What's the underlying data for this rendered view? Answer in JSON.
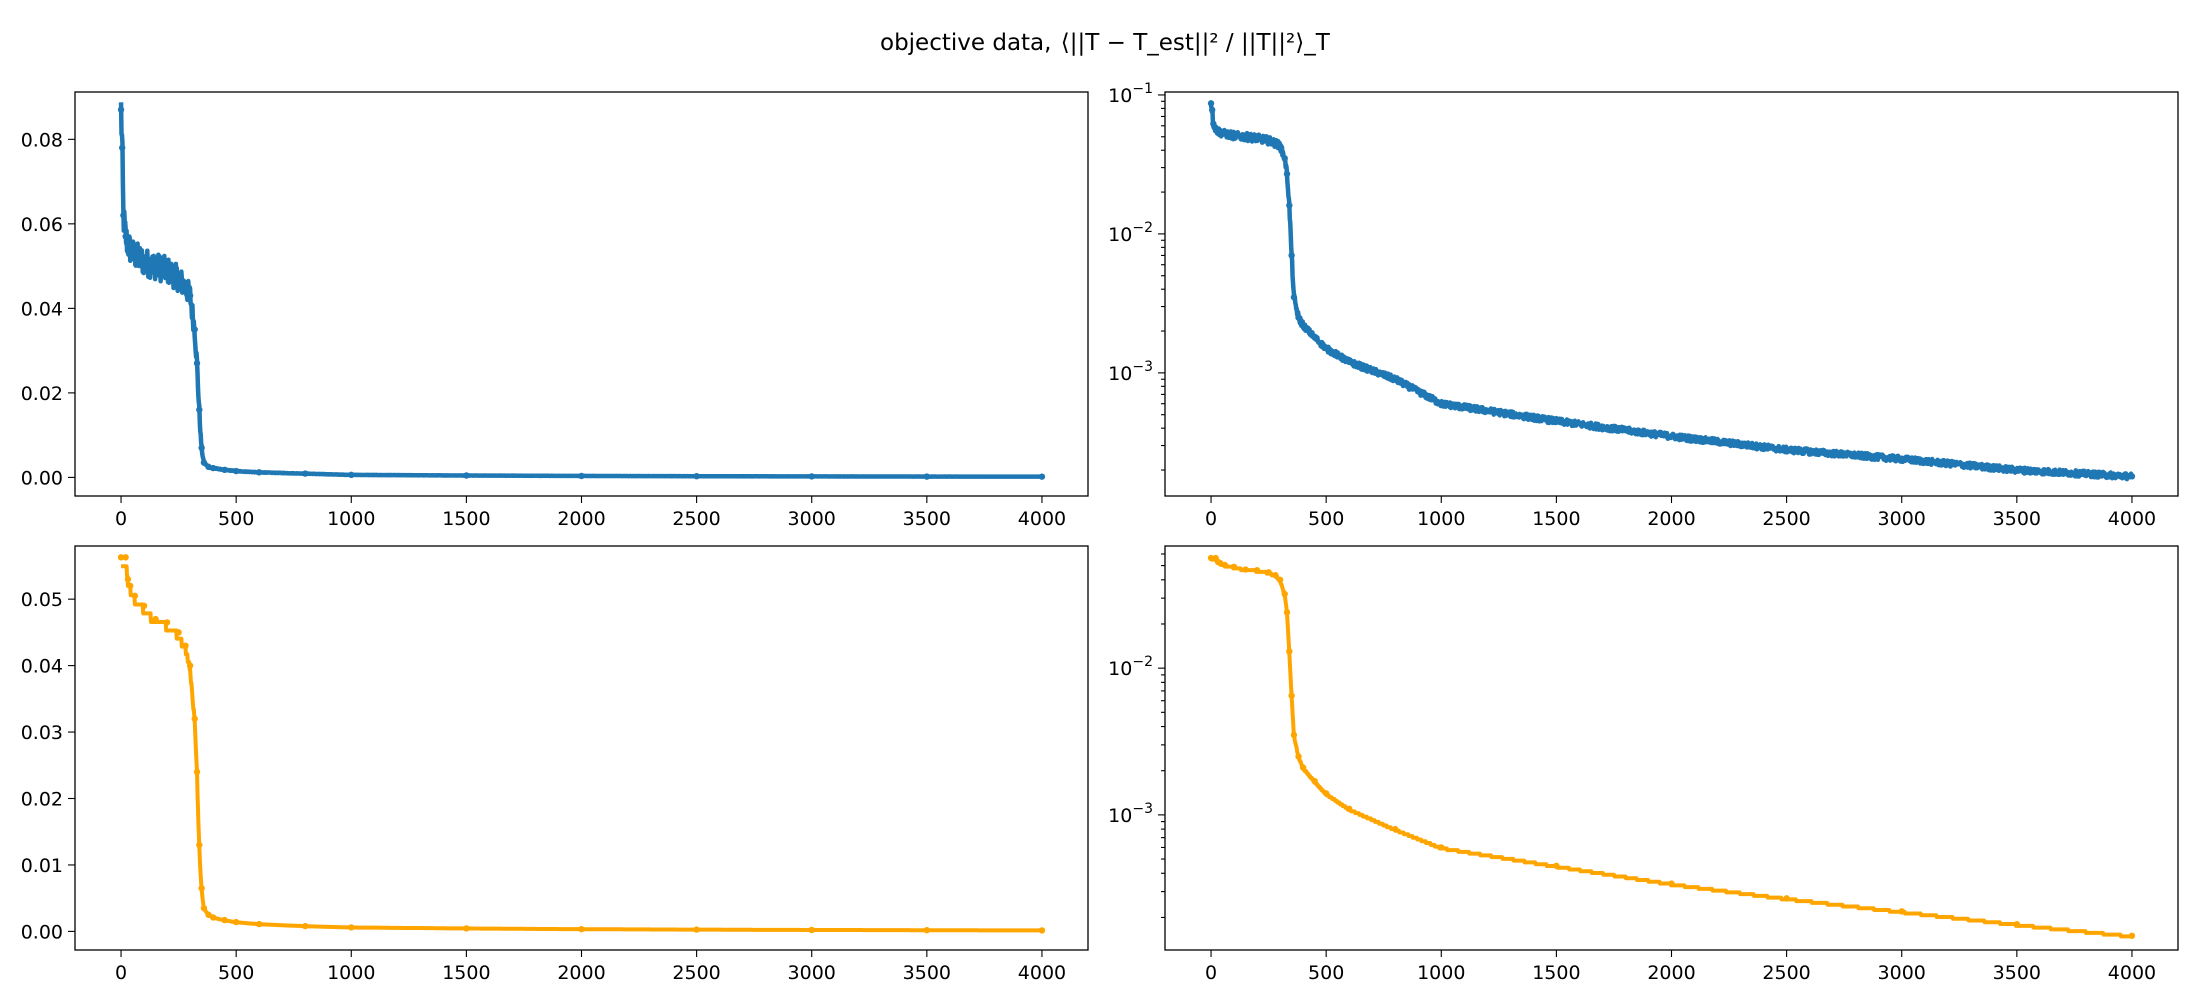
{
  "figure": {
    "title_prefix": "objective data, ",
    "title_expression": "⟨||T − T_est||² / ||T||²⟩_T"
  },
  "colors": {
    "blue_series": "#1f77b4",
    "orange_series": "#ffa500"
  },
  "chart_data": [
    {
      "id": "top-left",
      "type": "line",
      "marker": "dot",
      "color": "#1f77b4",
      "yscale": "linear",
      "xlim": [
        -200,
        4200
      ],
      "ylim": [
        -0.0044,
        0.0912
      ],
      "xticks": [
        0,
        500,
        1000,
        1500,
        2000,
        2500,
        3000,
        3500,
        4000
      ],
      "xtick_labels": [
        "0",
        "500",
        "1000",
        "1500",
        "2000",
        "2500",
        "3000",
        "3500",
        "4000"
      ],
      "yticks": [
        0.0,
        0.02,
        0.04,
        0.06,
        0.08
      ],
      "ytick_labels": [
        "0.00",
        "0.02",
        "0.04",
        "0.06",
        "0.08"
      ],
      "noise": 0.05,
      "series": [
        {
          "x": [
            0,
            5,
            10,
            20,
            30,
            50,
            100,
            150,
            200,
            250,
            280,
            300,
            320,
            330,
            340,
            350,
            360,
            380,
            400,
            450,
            500,
            600,
            800,
            1000,
            1500,
            2000,
            2500,
            3000,
            3500,
            4000
          ],
          "y": [
            0.087,
            0.078,
            0.062,
            0.057,
            0.055,
            0.053,
            0.051,
            0.05,
            0.049,
            0.047,
            0.045,
            0.043,
            0.035,
            0.027,
            0.016,
            0.007,
            0.0035,
            0.0025,
            0.0022,
            0.0018,
            0.0015,
            0.0012,
            0.0009,
            0.0006,
            0.00045,
            0.00035,
            0.00028,
            0.00024,
            0.0002,
            0.00018
          ]
        }
      ]
    },
    {
      "id": "top-right",
      "type": "line",
      "marker": "dot",
      "color": "#1f77b4",
      "yscale": "log",
      "xlim": [
        -200,
        4200
      ],
      "ylim": [
        0.00013,
        0.105
      ],
      "xticks": [
        0,
        500,
        1000,
        1500,
        2000,
        2500,
        3000,
        3500,
        4000
      ],
      "xtick_labels": [
        "0",
        "500",
        "1000",
        "1500",
        "2000",
        "2500",
        "3000",
        "3500",
        "4000"
      ],
      "yticks": [
        0.001,
        0.01,
        0.1
      ],
      "ytick_labels": [
        {
          "base": "10",
          "exp": "−3"
        },
        {
          "base": "10",
          "exp": "−2"
        },
        {
          "base": "10",
          "exp": "−1"
        }
      ],
      "noise": 0.05,
      "series": [
        {
          "x": [
            0,
            5,
            10,
            20,
            30,
            50,
            100,
            150,
            200,
            250,
            280,
            300,
            320,
            330,
            340,
            350,
            360,
            380,
            400,
            450,
            500,
            600,
            800,
            1000,
            1500,
            2000,
            2500,
            3000,
            3500,
            4000
          ],
          "y": [
            0.087,
            0.078,
            0.062,
            0.057,
            0.055,
            0.053,
            0.051,
            0.05,
            0.049,
            0.047,
            0.045,
            0.043,
            0.035,
            0.027,
            0.016,
            0.007,
            0.0035,
            0.0025,
            0.0022,
            0.0018,
            0.0015,
            0.0012,
            0.0009,
            0.0006,
            0.00045,
            0.00035,
            0.00028,
            0.00024,
            0.0002,
            0.00018
          ]
        }
      ]
    },
    {
      "id": "bottom-left",
      "type": "line",
      "marker": "dot",
      "color": "#ffa500",
      "yscale": "linear",
      "xlim": [
        -200,
        4200
      ],
      "ylim": [
        -0.0028,
        0.058
      ],
      "xticks": [
        0,
        500,
        1000,
        1500,
        2000,
        2500,
        3000,
        3500,
        4000
      ],
      "xtick_labels": [
        "0",
        "500",
        "1000",
        "1500",
        "2000",
        "2500",
        "3000",
        "3500",
        "4000"
      ],
      "yticks": [
        0.0,
        0.01,
        0.02,
        0.03,
        0.04,
        0.05
      ],
      "ytick_labels": [
        "0.00",
        "0.01",
        "0.02",
        "0.03",
        "0.04",
        "0.05"
      ],
      "noise": 0,
      "series": [
        {
          "x": [
            0,
            20,
            30,
            40,
            60,
            100,
            150,
            200,
            250,
            280,
            300,
            320,
            330,
            340,
            350,
            360,
            380,
            400,
            450,
            500,
            600,
            800,
            1000,
            1500,
            2000,
            2500,
            3000,
            3500,
            4000
          ],
          "y": [
            0.0563,
            0.0563,
            0.053,
            0.052,
            0.0505,
            0.049,
            0.047,
            0.0465,
            0.045,
            0.043,
            0.04,
            0.032,
            0.024,
            0.013,
            0.0065,
            0.0035,
            0.0025,
            0.0021,
            0.0017,
            0.0014,
            0.0011,
            0.0008,
            0.0006,
            0.00045,
            0.00034,
            0.00027,
            0.00022,
            0.00018,
            0.00015
          ]
        }
      ]
    },
    {
      "id": "bottom-right",
      "type": "line",
      "marker": "dot",
      "color": "#ffa500",
      "yscale": "log",
      "xlim": [
        -200,
        4200
      ],
      "ylim": [
        0.00012,
        0.068
      ],
      "xticks": [
        0,
        500,
        1000,
        1500,
        2000,
        2500,
        3000,
        3500,
        4000
      ],
      "xtick_labels": [
        "0",
        "500",
        "1000",
        "1500",
        "2000",
        "2500",
        "3000",
        "3500",
        "4000"
      ],
      "yticks": [
        0.001,
        0.01
      ],
      "ytick_labels": [
        {
          "base": "10",
          "exp": "−3"
        },
        {
          "base": "10",
          "exp": "−2"
        }
      ],
      "noise": 0,
      "series": [
        {
          "x": [
            0,
            20,
            30,
            40,
            60,
            100,
            150,
            200,
            250,
            280,
            300,
            320,
            330,
            340,
            350,
            360,
            380,
            400,
            450,
            500,
            600,
            800,
            1000,
            1500,
            2000,
            2500,
            3000,
            3500,
            4000
          ],
          "y": [
            0.0563,
            0.0563,
            0.053,
            0.052,
            0.0505,
            0.049,
            0.047,
            0.0465,
            0.045,
            0.043,
            0.04,
            0.032,
            0.024,
            0.013,
            0.0065,
            0.0035,
            0.0025,
            0.0021,
            0.0017,
            0.0014,
            0.0011,
            0.0008,
            0.0006,
            0.00045,
            0.00034,
            0.00027,
            0.00022,
            0.00018,
            0.00015
          ]
        }
      ]
    }
  ]
}
